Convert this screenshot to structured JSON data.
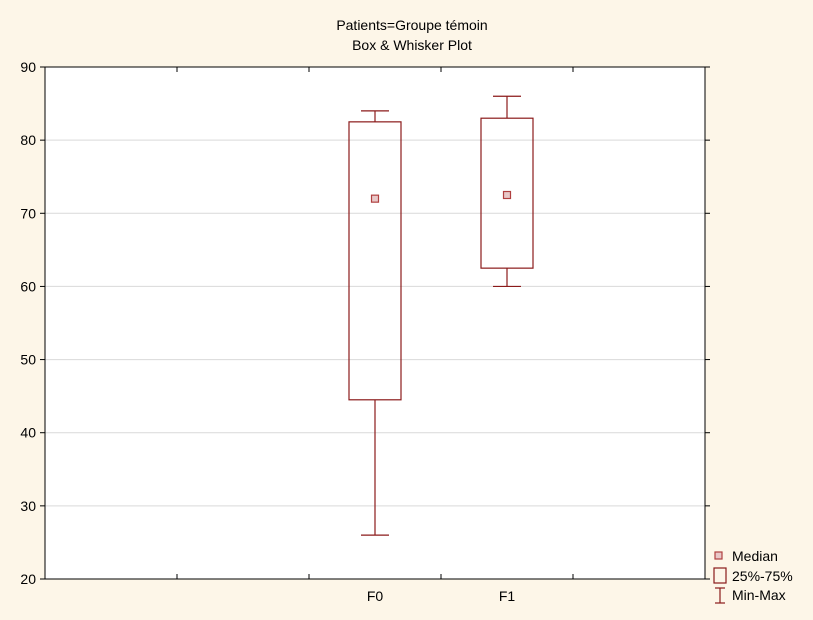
{
  "chart_data": {
    "type": "box",
    "title": "Patients=Groupe témoin",
    "subtitle": "Box & Whisker Plot",
    "xlabel": "",
    "ylabel": "",
    "ylim": [
      20,
      90
    ],
    "yticks": [
      20,
      30,
      40,
      50,
      60,
      70,
      80,
      90
    ],
    "categories": [
      "F0",
      "F1"
    ],
    "boxes": [
      {
        "category": "F0",
        "min": 26,
        "q1": 44.5,
        "median": 72,
        "q3": 82.5,
        "max": 84
      },
      {
        "category": "F1",
        "min": 60,
        "q1": 62.5,
        "median": 72.5,
        "q3": 83,
        "max": 86
      }
    ],
    "grid": true,
    "legend_position": "bottom-right",
    "legend": [
      {
        "key": "median",
        "label": "Median"
      },
      {
        "key": "box",
        "label": "25%-75%"
      },
      {
        "key": "range",
        "label": "Min-Max"
      }
    ],
    "colors": {
      "box": "#8b1a1a",
      "median": "#b04040",
      "background": "#fdf6e8",
      "plot_background": "#ffffff",
      "grid": "#d9d9d9"
    }
  }
}
